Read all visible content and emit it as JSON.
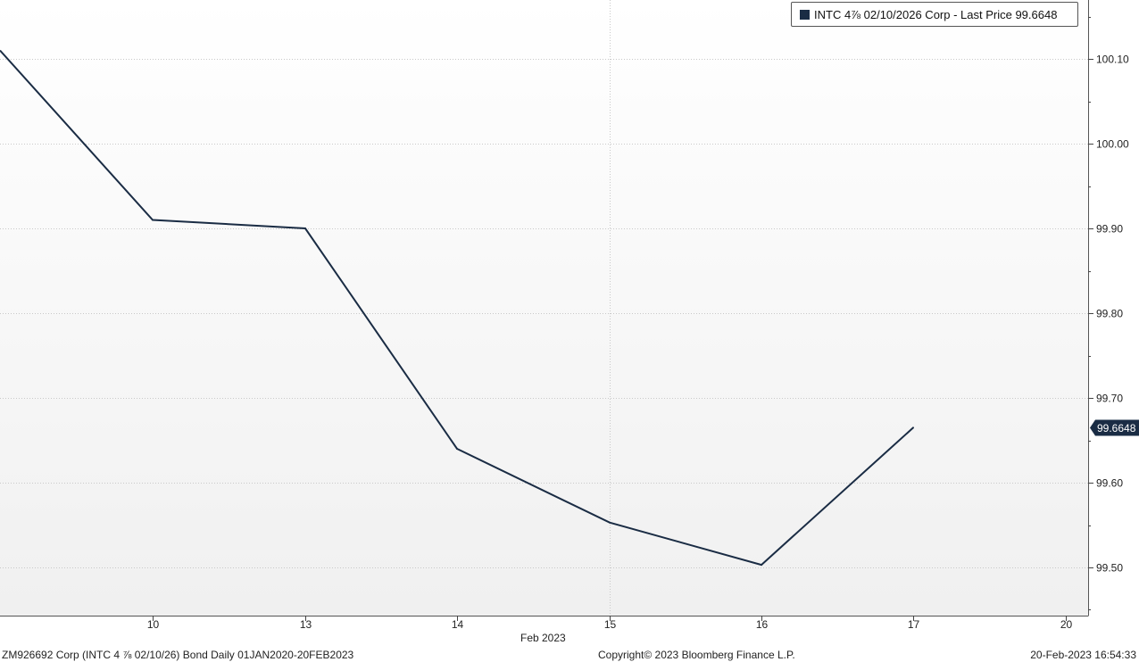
{
  "chart_data": {
    "type": "line",
    "x": [
      "10",
      "13",
      "14",
      "15",
      "16",
      "17"
    ],
    "x_ticks": [
      "10",
      "13",
      "14",
      "15",
      "16",
      "17",
      "20"
    ],
    "x_month_label": "Feb 2023",
    "series": [
      {
        "name": "INTC 4⅞ 02/10/2026 Corp - Last Price 99.6648",
        "color": "#1a2c44",
        "start_value": 100.11,
        "values": [
          99.91,
          99.9,
          99.64,
          99.553,
          99.503,
          99.6648
        ]
      }
    ],
    "y_ticks": [
      "99.50",
      "99.60",
      "99.70",
      "99.80",
      "99.90",
      "100.00",
      "100.10"
    ],
    "ylim": [
      99.44,
      100.17
    ],
    "last_value_label": "99.6648",
    "grid": true,
    "legend_position": "top-right"
  },
  "footer": {
    "left": "ZM926692 Corp (INTC 4 ⅞ 02/10/26) Bond  Daily 01JAN2020-20FEB2023",
    "center": "Copyright© 2023 Bloomberg Finance L.P.",
    "right": "20-Feb-2023 16:54:33"
  },
  "colors": {
    "line": "#1a2c44",
    "badge": "#1a2c44",
    "grid": "#c8c8c8"
  }
}
